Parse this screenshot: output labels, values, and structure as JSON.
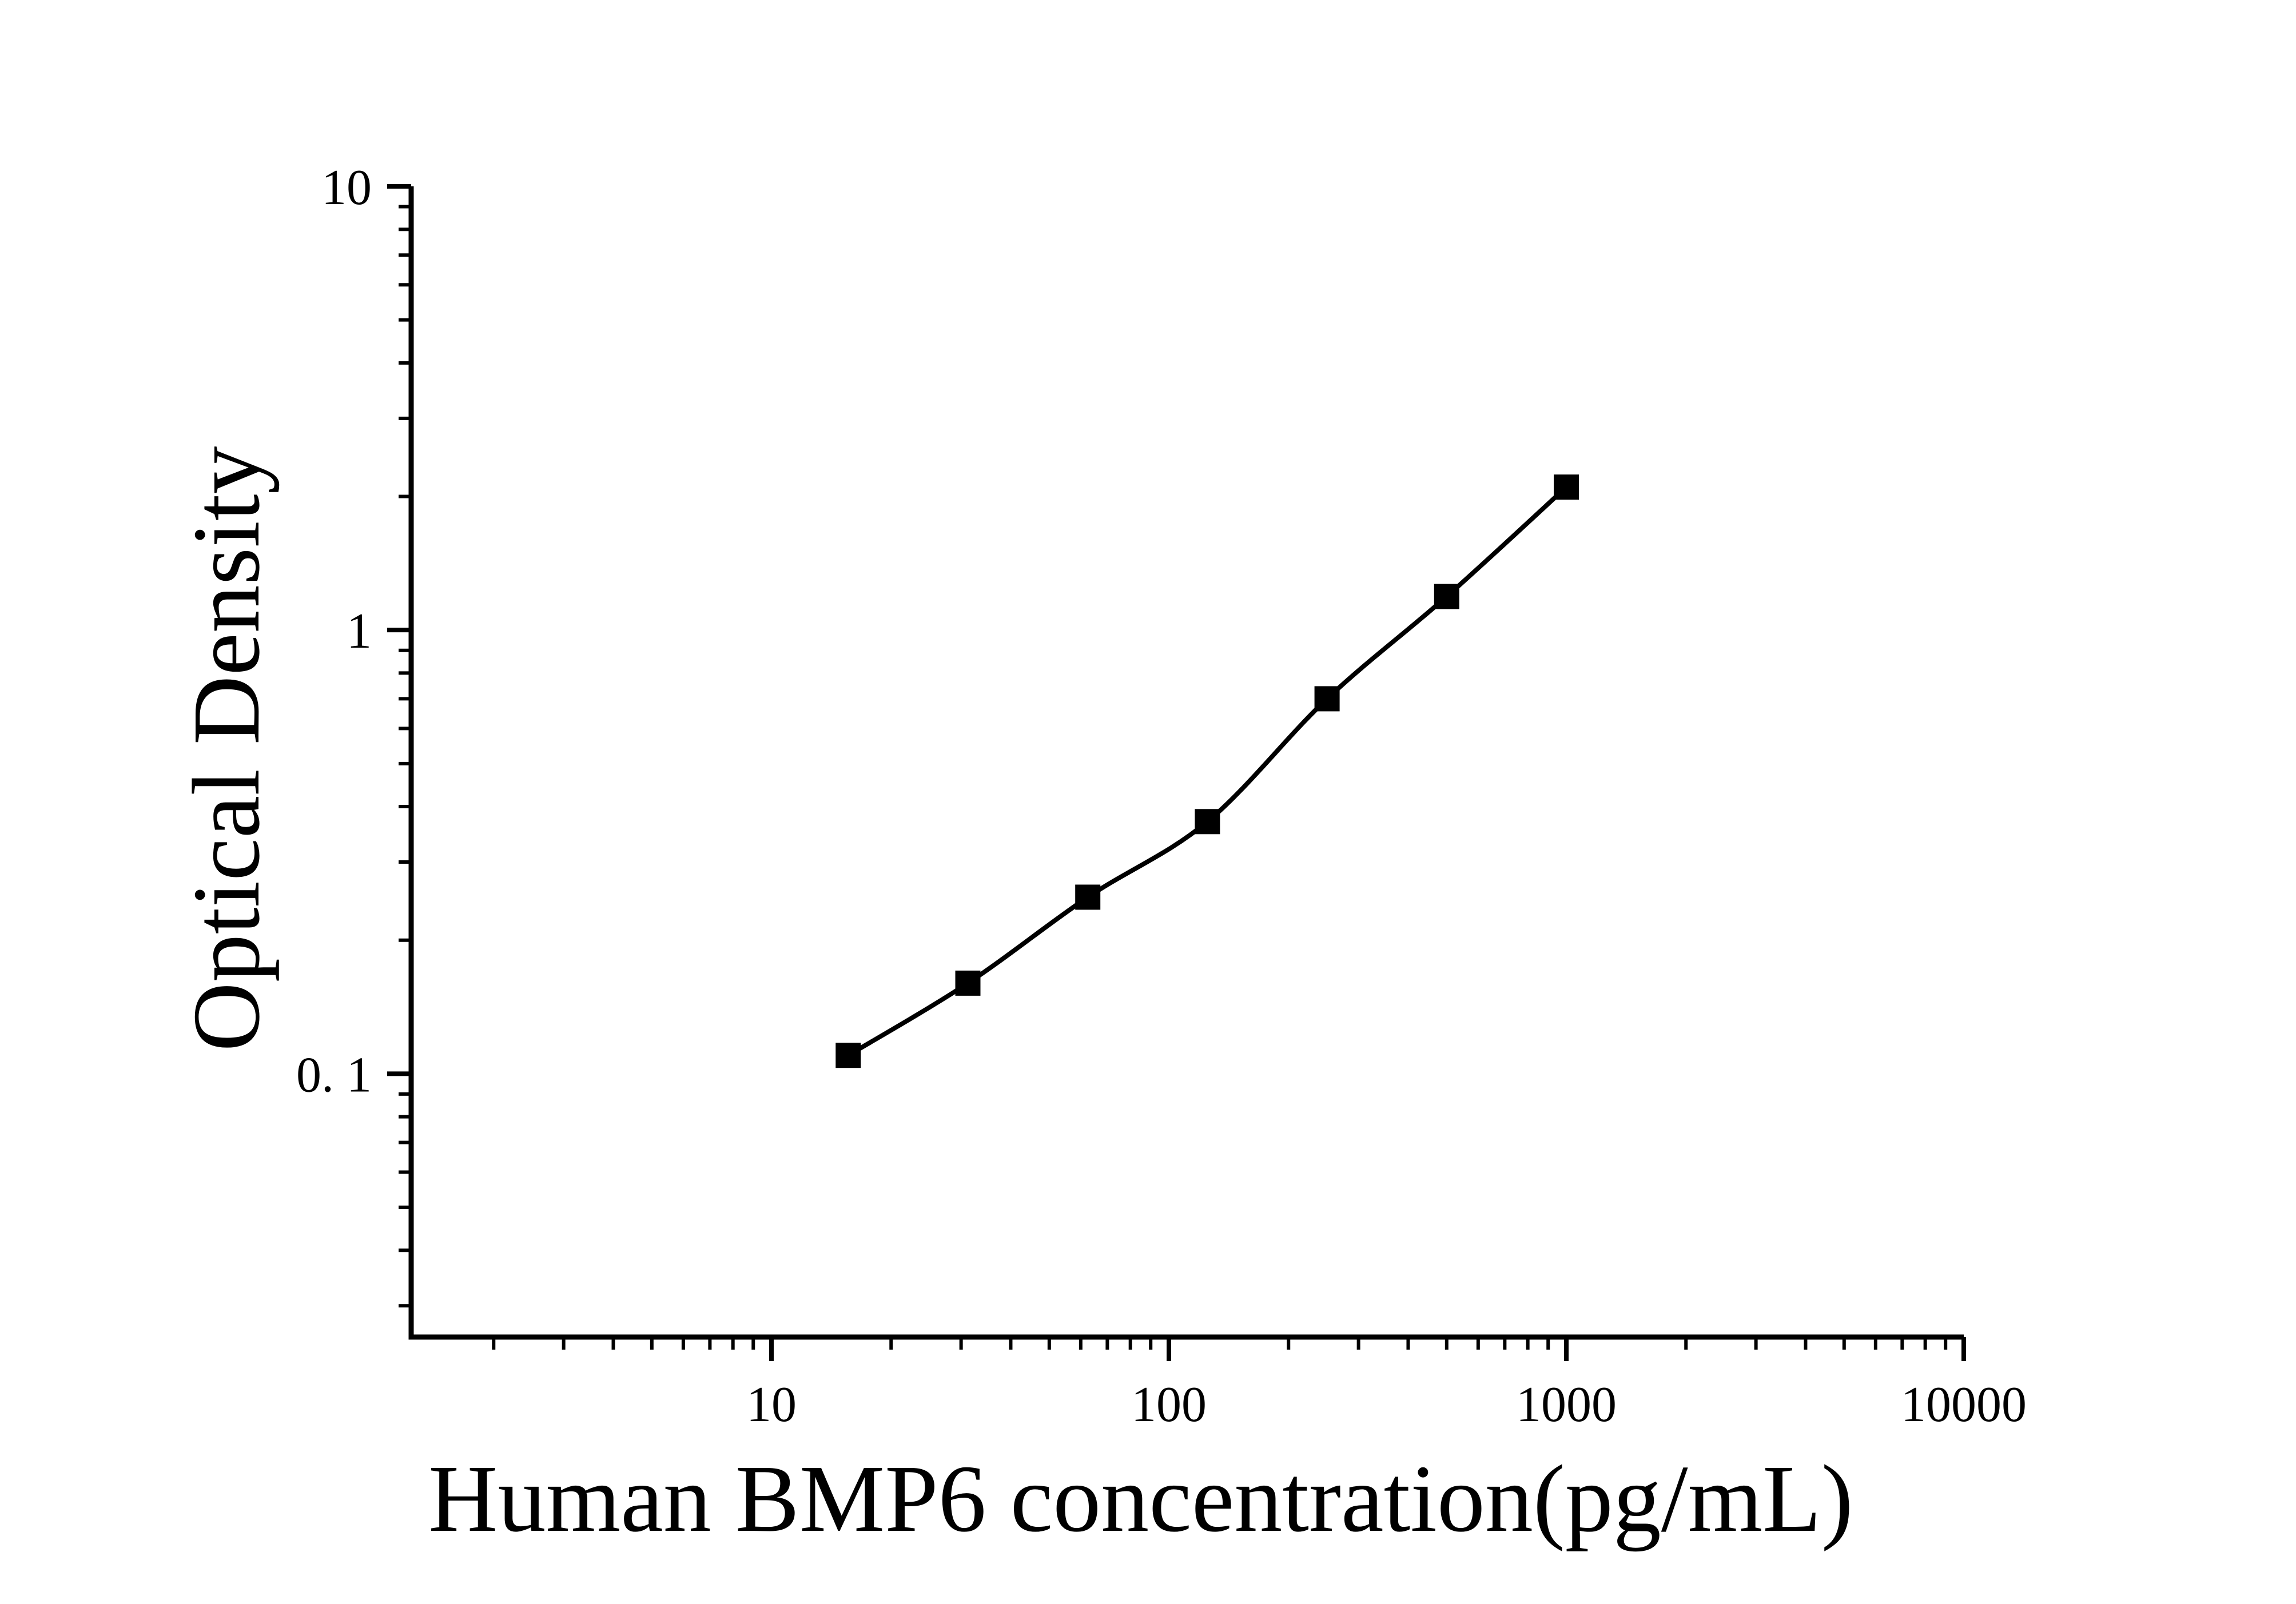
{
  "figure": {
    "background": "#ffffff",
    "foreground": "#000000"
  },
  "chart_data": {
    "type": "line",
    "title": "",
    "xlabel": "Human BMP6 concentration(pg/mL)",
    "ylabel": "Optical Density",
    "grid": false,
    "legend": false,
    "x_axis": {
      "scale": "log",
      "range": [
        1.24,
        10000
      ],
      "major_ticks": [
        {
          "value": 10,
          "label": "10"
        },
        {
          "value": 100,
          "label": "100"
        },
        {
          "value": 1000,
          "label": "1000"
        },
        {
          "value": 10000,
          "label": "10000"
        }
      ]
    },
    "y_axis": {
      "scale": "log",
      "range": [
        0.0255,
        10
      ],
      "major_ticks": [
        {
          "value": 10,
          "label": "10"
        },
        {
          "value": 1,
          "label": "1"
        },
        {
          "value": 0.1,
          "label": "0. 1"
        }
      ]
    },
    "series": [
      {
        "name": "standard-curve",
        "marker": "filled-square",
        "color": "#000000",
        "points": [
          {
            "x": 15.6,
            "y": 0.11
          },
          {
            "x": 31.2,
            "y": 0.16
          },
          {
            "x": 62.5,
            "y": 0.25
          },
          {
            "x": 125,
            "y": 0.37
          },
          {
            "x": 250,
            "y": 0.7
          },
          {
            "x": 500,
            "y": 1.19
          },
          {
            "x": 1000,
            "y": 2.1
          }
        ]
      }
    ]
  }
}
